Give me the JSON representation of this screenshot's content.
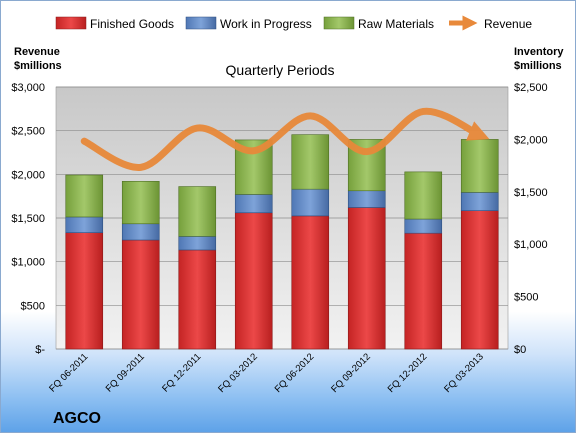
{
  "chart_data": {
    "type": "bar",
    "title": "Quarterly Periods",
    "company": "AGCO",
    "left_axis_label": [
      "Revenue",
      "$millions"
    ],
    "right_axis_label": [
      "Inventory",
      "$millions"
    ],
    "categories": [
      "FQ 06-2011",
      "FQ 09-2011",
      "FQ 12-2011",
      "FQ 03-2012",
      "FQ 06-2012",
      "FQ 09-2012",
      "FQ 12-2012",
      "FQ 03-2013"
    ],
    "left_ticks": [
      "$-",
      "$500",
      "$1,000",
      "$1,500",
      "$2,000",
      "$2,500",
      "$3,000"
    ],
    "right_ticks": [
      "$0",
      "$500",
      "$1,000",
      "$1,500",
      "$2,000",
      "$2,500"
    ],
    "ylim_left": [
      0,
      3000
    ],
    "ylim_right": [
      0,
      2500
    ],
    "grid": true,
    "legend_position": "top",
    "series": [
      {
        "name": "Finished Goods",
        "axis": "right",
        "stack": true,
        "color": "#e03c3c",
        "values": [
          1110,
          1040,
          945,
          1300,
          1270,
          1350,
          1105,
          1320
        ]
      },
      {
        "name": "Work in Progress",
        "axis": "right",
        "stack": true,
        "color": "#5b86c6",
        "values": [
          150,
          155,
          130,
          175,
          255,
          160,
          135,
          175
        ]
      },
      {
        "name": "Raw Materials",
        "axis": "right",
        "stack": true,
        "color": "#8bb54b",
        "values": [
          400,
          405,
          475,
          520,
          520,
          490,
          450,
          505
        ]
      },
      {
        "name": "Revenue",
        "axis": "left",
        "type": "line",
        "color": "#e8893a",
        "values": [
          2380,
          2080,
          2530,
          2270,
          2670,
          2260,
          2720,
          2450
        ]
      }
    ]
  }
}
